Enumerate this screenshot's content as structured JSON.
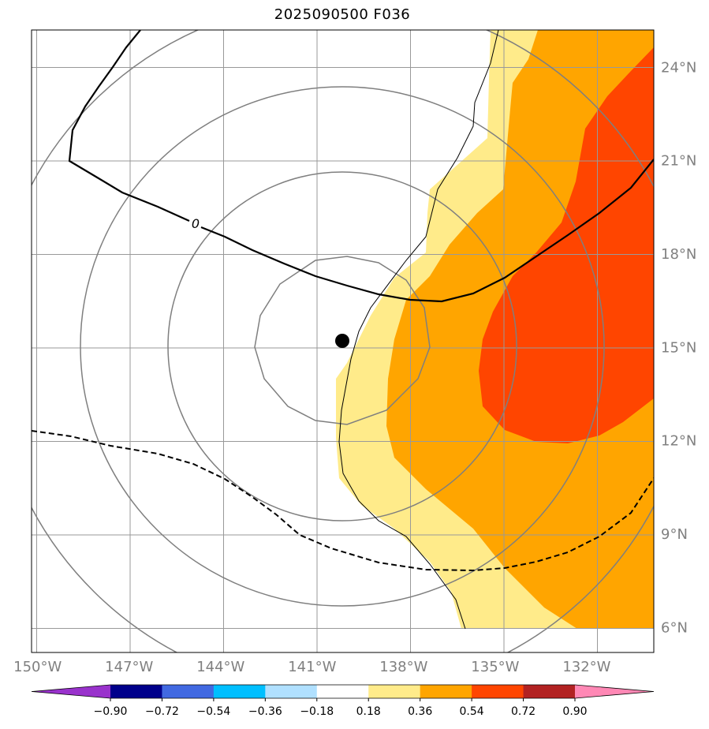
{
  "title": "2025090500 F036",
  "chart_data": {
    "type": "map-contour",
    "title": "2025090500 F036",
    "extent": {
      "lon": [
        -150.2,
        -129.8
      ],
      "lat": [
        5.2,
        25.2
      ]
    },
    "lon_ticks": [
      {
        "value": -150,
        "label": "150°W"
      },
      {
        "value": -147,
        "label": "147°W"
      },
      {
        "value": -144,
        "label": "144°W"
      },
      {
        "value": -141,
        "label": "141°W"
      },
      {
        "value": -138,
        "label": "138°W"
      },
      {
        "value": -135,
        "label": "135°W"
      },
      {
        "value": -132,
        "label": "132°W"
      }
    ],
    "lat_ticks": [
      {
        "value": 24,
        "label": "24°N"
      },
      {
        "value": 21,
        "label": "21°N"
      },
      {
        "value": 18,
        "label": "18°N"
      },
      {
        "value": 15,
        "label": "15°N"
      },
      {
        "value": 12,
        "label": "12°N"
      },
      {
        "value": 9,
        "label": "9°N"
      },
      {
        "value": 6,
        "label": "6°N"
      }
    ],
    "storm_center": {
      "lon": -140.2,
      "lat": 15.2
    },
    "zero_contour_label": "0",
    "colorbar": {
      "levels": [
        "−0.90",
        "−0.72",
        "−0.54",
        "−0.36",
        "−0.18",
        "0.18",
        "0.36",
        "0.54",
        "0.72",
        "0.90"
      ],
      "colors": [
        "#9932cc",
        "#00008b",
        "#4169e1",
        "#00bfff",
        "#b0e0ff",
        "#ffffff",
        "#ffeb8a",
        "#ffa500",
        "#ff4500",
        "#b22222",
        "#ff88b5"
      ]
    },
    "fill_colors": {
      "level_018": "#ffeb8a",
      "level_036": "#ffa500",
      "level_054": "#ff4500"
    }
  }
}
